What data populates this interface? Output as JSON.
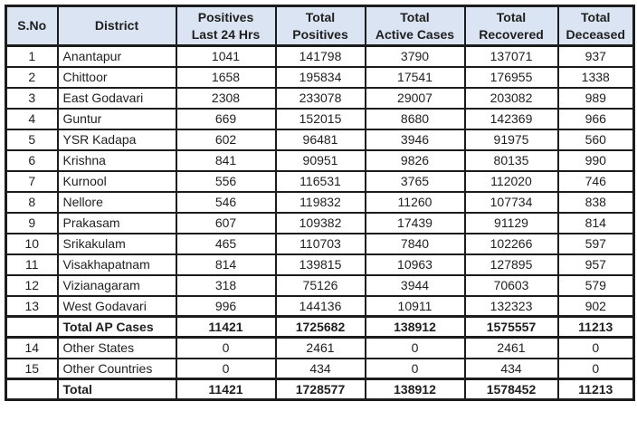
{
  "colors": {
    "header_bg": "#dbe4f2",
    "border_color": "#1c1c1c",
    "text_color": "#1f1f1f",
    "page_bg": "#ffffff"
  },
  "chart_data": {
    "type": "table",
    "columns": [
      "S.No",
      "District",
      "Positives\nLast 24 Hrs",
      "Total\nPositives",
      "Total\nActive Cases",
      "Total\nRecovered",
      "Total\nDeceased"
    ],
    "rows": [
      {
        "sno": "1",
        "district": "Anantapur",
        "positives_24hrs": "1041",
        "total_positives": "141798",
        "total_active": "3790",
        "total_recovered": "137071",
        "total_deceased": "937",
        "bold": false
      },
      {
        "sno": "2",
        "district": "Chittoor",
        "positives_24hrs": "1658",
        "total_positives": "195834",
        "total_active": "17541",
        "total_recovered": "176955",
        "total_deceased": "1338",
        "bold": false
      },
      {
        "sno": "3",
        "district": "East Godavari",
        "positives_24hrs": "2308",
        "total_positives": "233078",
        "total_active": "29007",
        "total_recovered": "203082",
        "total_deceased": "989",
        "bold": false
      },
      {
        "sno": "4",
        "district": "Guntur",
        "positives_24hrs": "669",
        "total_positives": "152015",
        "total_active": "8680",
        "total_recovered": "142369",
        "total_deceased": "966",
        "bold": false
      },
      {
        "sno": "5",
        "district": "YSR Kadapa",
        "positives_24hrs": "602",
        "total_positives": "96481",
        "total_active": "3946",
        "total_recovered": "91975",
        "total_deceased": "560",
        "bold": false
      },
      {
        "sno": "6",
        "district": "Krishna",
        "positives_24hrs": "841",
        "total_positives": "90951",
        "total_active": "9826",
        "total_recovered": "80135",
        "total_deceased": "990",
        "bold": false
      },
      {
        "sno": "7",
        "district": "Kurnool",
        "positives_24hrs": "556",
        "total_positives": "116531",
        "total_active": "3765",
        "total_recovered": "112020",
        "total_deceased": "746",
        "bold": false
      },
      {
        "sno": "8",
        "district": "Nellore",
        "positives_24hrs": "546",
        "total_positives": "119832",
        "total_active": "11260",
        "total_recovered": "107734",
        "total_deceased": "838",
        "bold": false
      },
      {
        "sno": "9",
        "district": "Prakasam",
        "positives_24hrs": "607",
        "total_positives": "109382",
        "total_active": "17439",
        "total_recovered": "91129",
        "total_deceased": "814",
        "bold": false
      },
      {
        "sno": "10",
        "district": "Srikakulam",
        "positives_24hrs": "465",
        "total_positives": "110703",
        "total_active": "7840",
        "total_recovered": "102266",
        "total_deceased": "597",
        "bold": false
      },
      {
        "sno": "11",
        "district": "Visakhapatnam",
        "positives_24hrs": "814",
        "total_positives": "139815",
        "total_active": "10963",
        "total_recovered": "127895",
        "total_deceased": "957",
        "bold": false
      },
      {
        "sno": "12",
        "district": "Vizianagaram",
        "positives_24hrs": "318",
        "total_positives": "75126",
        "total_active": "3944",
        "total_recovered": "70603",
        "total_deceased": "579",
        "bold": false
      },
      {
        "sno": "13",
        "district": "West Godavari",
        "positives_24hrs": "996",
        "total_positives": "144136",
        "total_active": "10911",
        "total_recovered": "132323",
        "total_deceased": "902",
        "bold": false
      },
      {
        "sno": "",
        "district": "Total AP Cases",
        "positives_24hrs": "11421",
        "total_positives": "1725682",
        "total_active": "138912",
        "total_recovered": "1575557",
        "total_deceased": "11213",
        "bold": true
      },
      {
        "sno": "14",
        "district": "Other States",
        "positives_24hrs": "0",
        "total_positives": "2461",
        "total_active": "0",
        "total_recovered": "2461",
        "total_deceased": "0",
        "bold": false
      },
      {
        "sno": "15",
        "district": "Other Countries",
        "positives_24hrs": "0",
        "total_positives": "434",
        "total_active": "0",
        "total_recovered": "434",
        "total_deceased": "0",
        "bold": false
      },
      {
        "sno": "",
        "district": "Total",
        "positives_24hrs": "11421",
        "total_positives": "1728577",
        "total_active": "138912",
        "total_recovered": "1578452",
        "total_deceased": "11213",
        "bold": true
      }
    ]
  }
}
